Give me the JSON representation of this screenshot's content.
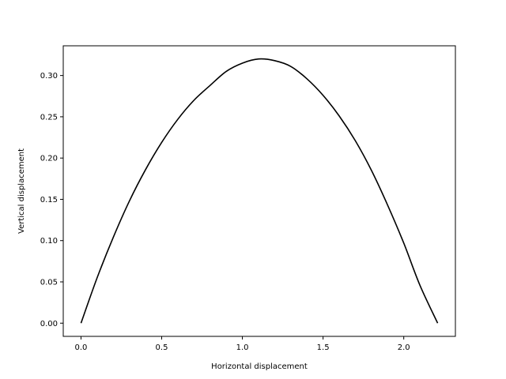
{
  "chart_data": {
    "type": "line",
    "title": "",
    "xlabel": "Horizontal displacement",
    "ylabel": "Vertical displacement",
    "xlim": [
      -0.11,
      2.32
    ],
    "ylim": [
      -0.016,
      0.336
    ],
    "xticks": [
      "0.0",
      "0.5",
      "1.0",
      "1.5",
      "2.0"
    ],
    "yticks": [
      "0.00",
      "0.05",
      "0.10",
      "0.15",
      "0.20",
      "0.25",
      "0.30"
    ],
    "grid": false,
    "series": [
      {
        "color": "#000000",
        "x": [
          0.0,
          0.1,
          0.2,
          0.3,
          0.4,
          0.5,
          0.6,
          0.7,
          0.8,
          0.9,
          1.0,
          1.1,
          1.2,
          1.3,
          1.4,
          1.5,
          1.6,
          1.7,
          1.8,
          1.9,
          2.0,
          2.1,
          2.21
        ],
        "y": [
          0.0,
          0.055,
          0.104,
          0.148,
          0.186,
          0.219,
          0.247,
          0.27,
          0.288,
          0.305,
          0.315,
          0.32,
          0.318,
          0.311,
          0.296,
          0.276,
          0.251,
          0.221,
          0.185,
          0.143,
          0.097,
          0.046,
          0.0
        ]
      }
    ]
  }
}
